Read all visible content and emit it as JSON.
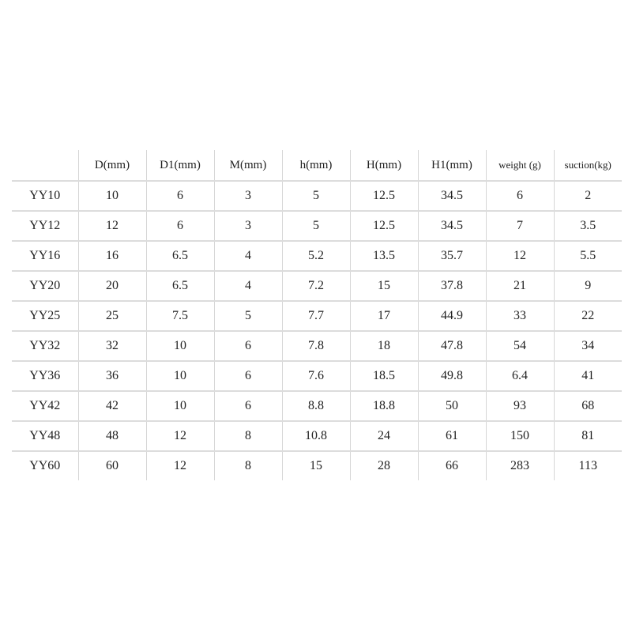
{
  "table": {
    "headers": [
      "",
      "D(mm)",
      "D1(mm)",
      "M(mm)",
      "h(mm)",
      "H(mm)",
      "H1(mm)",
      "weight (g)",
      "suction(kg)"
    ],
    "rows": [
      [
        "YY10",
        "10",
        "6",
        "3",
        "5",
        "12.5",
        "34.5",
        "6",
        "2"
      ],
      [
        "YY12",
        "12",
        "6",
        "3",
        "5",
        "12.5",
        "34.5",
        "7",
        "3.5"
      ],
      [
        "YY16",
        "16",
        "6.5",
        "4",
        "5.2",
        "13.5",
        "35.7",
        "12",
        "5.5"
      ],
      [
        "YY20",
        "20",
        "6.5",
        "4",
        "7.2",
        "15",
        "37.8",
        "21",
        "9"
      ],
      [
        "YY25",
        "25",
        "7.5",
        "5",
        "7.7",
        "17",
        "44.9",
        "33",
        "22"
      ],
      [
        "YY32",
        "32",
        "10",
        "6",
        "7.8",
        "18",
        "47.8",
        "54",
        "34"
      ],
      [
        "YY36",
        "36",
        "10",
        "6",
        "7.6",
        "18.5",
        "49.8",
        "6.4",
        "41"
      ],
      [
        "YY42",
        "42",
        "10",
        "6",
        "8.8",
        "18.8",
        "50",
        "93",
        "68"
      ],
      [
        "YY48",
        "48",
        "12",
        "8",
        "10.8",
        "24",
        "61",
        "150",
        "81"
      ],
      [
        "YY60",
        "60",
        "12",
        "8",
        "15",
        "28",
        "66",
        "283",
        "113"
      ]
    ]
  }
}
